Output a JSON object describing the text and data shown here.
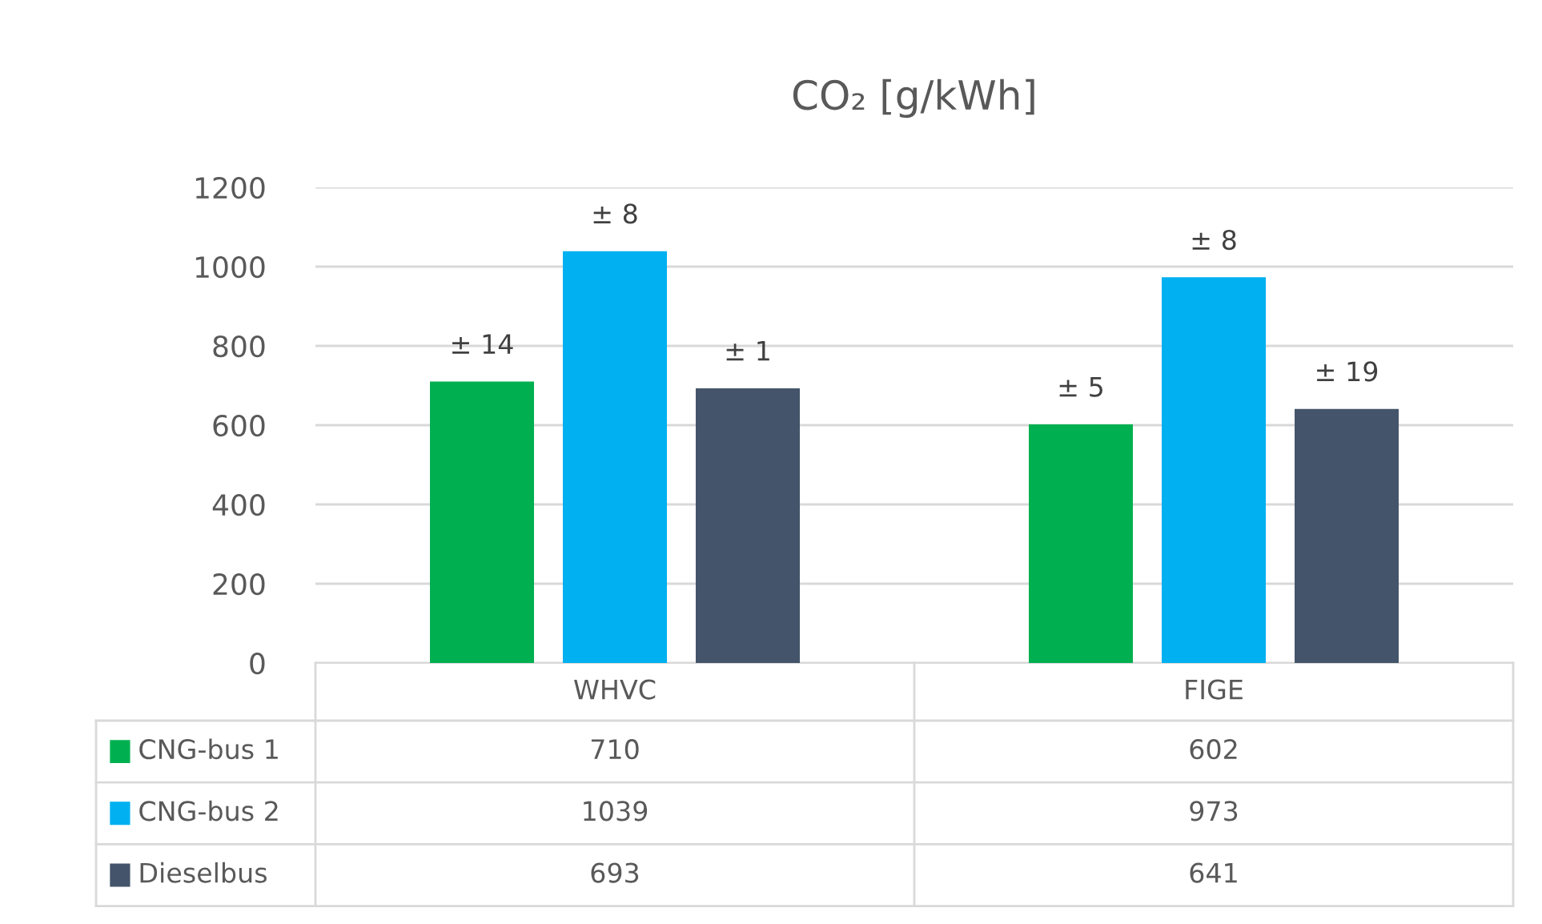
{
  "chart_data": {
    "type": "bar",
    "title": "CO₂ [g/kWh]",
    "categories": [
      "WHVC",
      "FIGE"
    ],
    "series": [
      {
        "name": "CNG-bus 1",
        "color": "#00b050",
        "values": [
          710,
          602
        ]
      },
      {
        "name": "CNG-bus 2",
        "color": "#00b0f0",
        "values": [
          1039,
          973
        ]
      },
      {
        "name": "Dieselbus",
        "color": "#44546a",
        "values": [
          693,
          641
        ]
      }
    ],
    "annotations": [
      "± 14",
      "± 5",
      "± 8",
      "± 8",
      "± 1",
      "± 19"
    ],
    "ylim": [
      0,
      1200
    ],
    "yticks": [
      0,
      200,
      400,
      600,
      800,
      1000,
      1200
    ],
    "grid": "y",
    "legend": "bottom left",
    "data_labels": true
  }
}
